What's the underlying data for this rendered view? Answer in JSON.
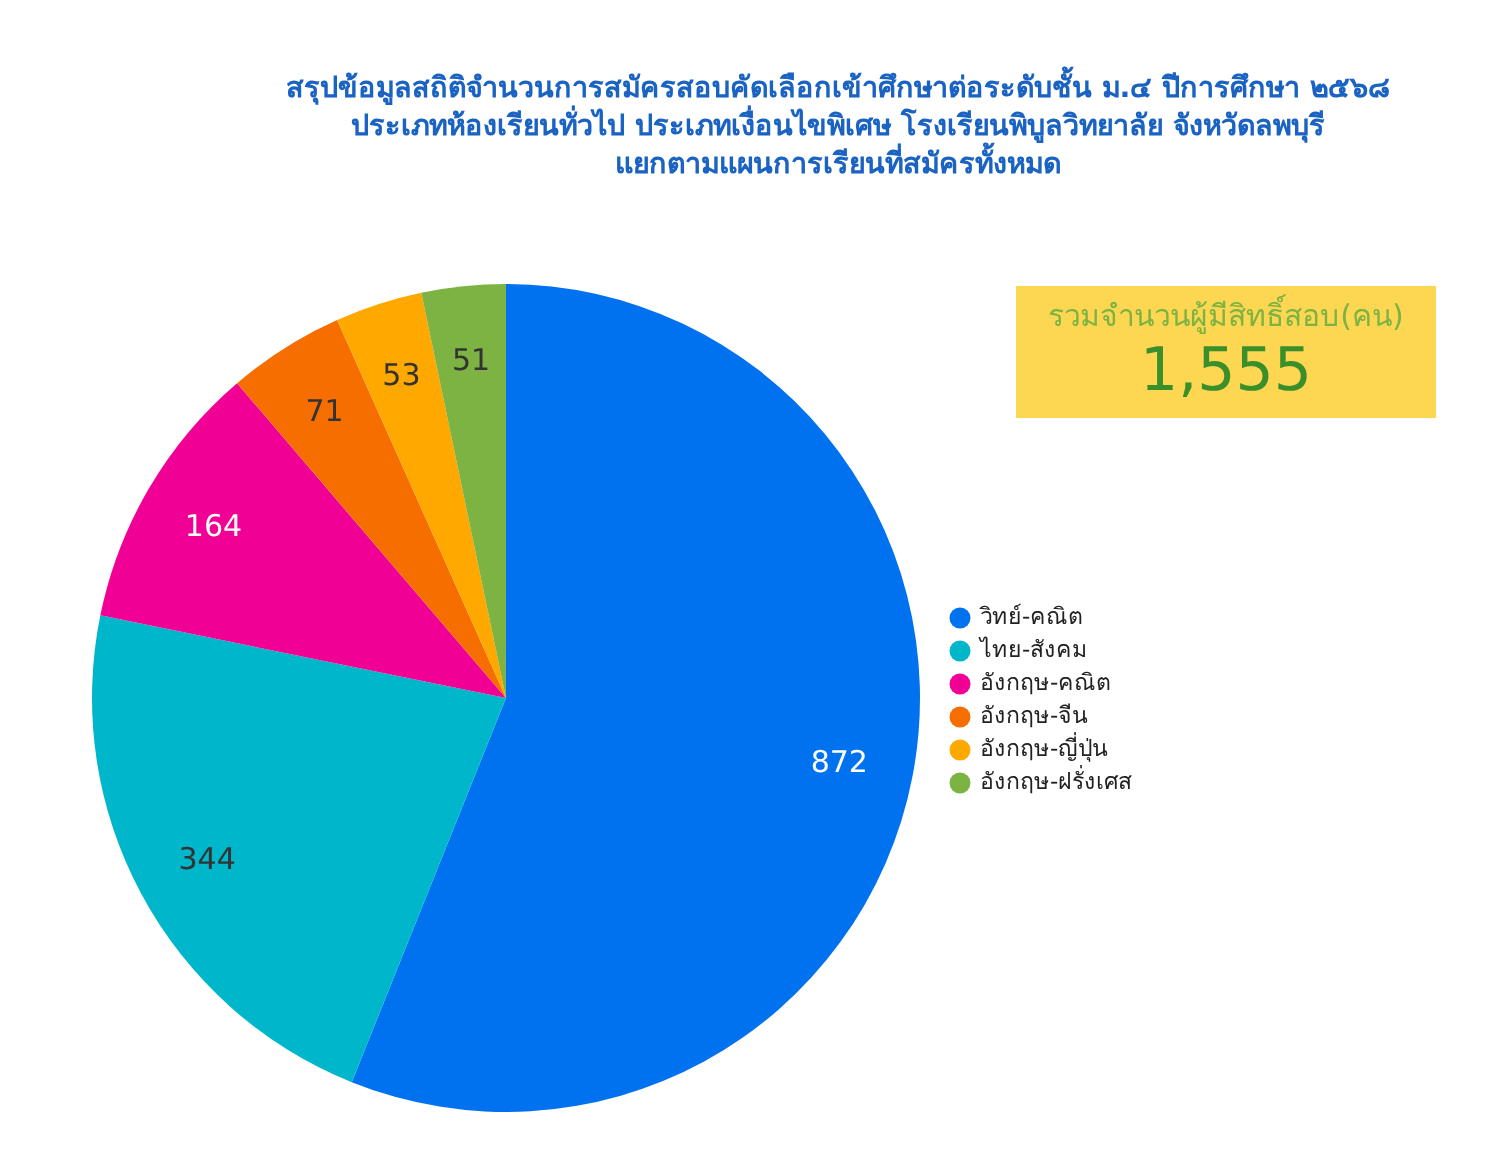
{
  "chart_data": {
    "type": "pie",
    "title": "สรุปข้อมูลสถิติจำนวนการสมัครสอบคัดเลือกเข้าศึกษาต่อระดับชั้น ม.๔ ปีการศึกษา ๒๕๖๘\nประเภทห้องเรียนทั่วไป ประเภทเงื่อนไขพิเศษ โรงเรียนพิบูลวิทยาลัย จังหวัดลพบุรี\nแยกตามแผนการเรียนที่สมัครทั้งหมด",
    "categories": [
      "วิทย์-คณิต",
      "ไทย-สังคม",
      "อังกฤษ-คณิต",
      "อังกฤษ-จีน",
      "อังกฤษ-ญี่ปุ่น",
      "อังกฤษ-ฝรั่งเศส"
    ],
    "values": [
      872,
      344,
      164,
      71,
      53,
      51
    ],
    "colors": [
      "#0072f0",
      "#00b6cb",
      "#f10096",
      "#f66d00",
      "#ffa800",
      "#7cb342"
    ],
    "data_labels": true,
    "legend": "right",
    "annotations": [
      "รวมจำนวนผู้มีสิทธิ์สอบ(คน)",
      "1,555"
    ]
  }
}
